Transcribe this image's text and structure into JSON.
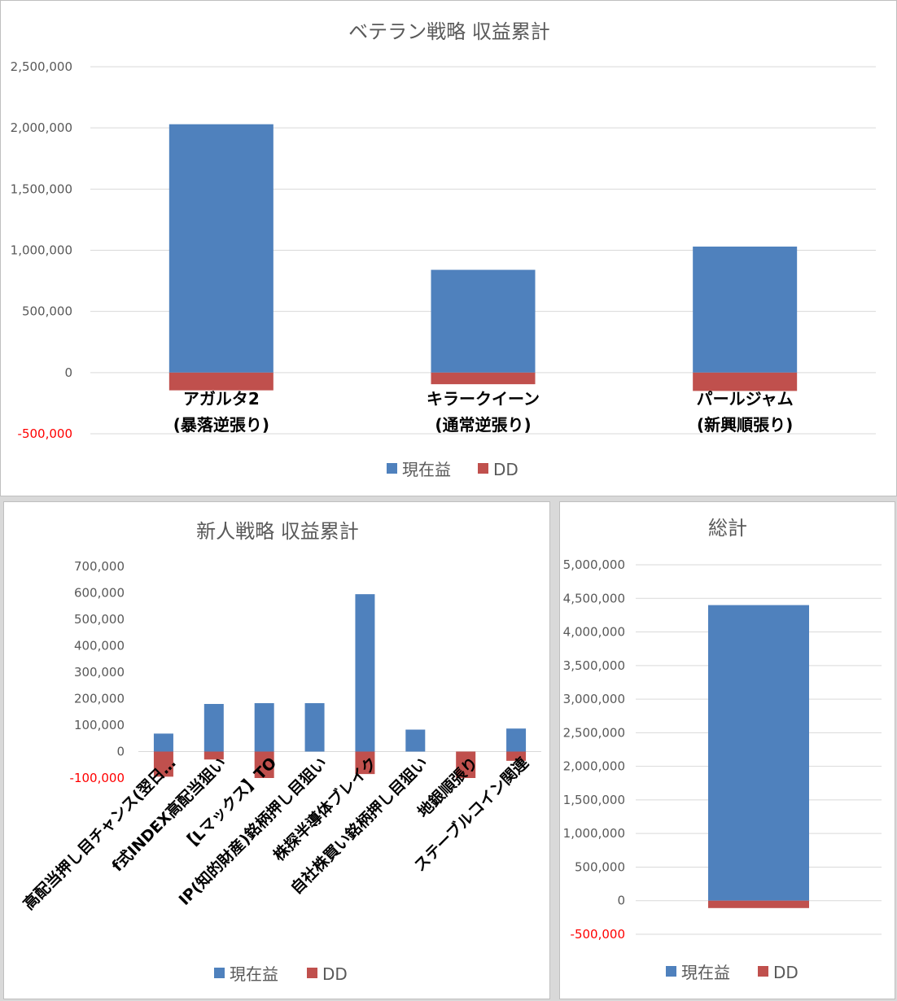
{
  "colors": {
    "profit": "#4f81bd",
    "dd": "#c0504d",
    "negative_tick": "#ff0000"
  },
  "chart_data": [
    {
      "type": "bar",
      "title": "ベテラン戦略 収益累計",
      "categories": [
        [
          "アガルタ2",
          "(暴落逆張り)"
        ],
        [
          "キラークイーン",
          "(通常逆張り)"
        ],
        [
          "パールジャム",
          "(新興順張り)"
        ]
      ],
      "series": [
        {
          "name": "現在益",
          "values": [
            2030000,
            840000,
            1030000
          ]
        },
        {
          "name": "DD",
          "values": [
            -145000,
            -95000,
            -150000
          ]
        }
      ],
      "ylim": [
        -500000,
        2500000
      ],
      "yticks": [
        -500000,
        0,
        500000,
        1000000,
        1500000,
        2000000,
        2500000
      ],
      "ytick_labels": [
        "-500,000",
        "0",
        "500,000",
        "1,000,000",
        "1,500,000",
        "2,000,000",
        "2,500,000"
      ],
      "grid": true,
      "legend": "bottom"
    },
    {
      "type": "bar",
      "title": "新人戦略 収益累計",
      "categories": [
        "高配当押し目チャンス(翌日…",
        "f式INDEX高配当狙い",
        "【Lマックス】TO",
        "IP(知的財産)銘柄押し目狙い",
        "株探半導体ブレイク",
        "自社株買い銘柄押し目狙い",
        "地銀順張り",
        "ステーブルコイン関連"
      ],
      "series": [
        {
          "name": "現在益",
          "values": [
            68000,
            180000,
            183000,
            183000,
            595000,
            83000,
            0,
            87000
          ]
        },
        {
          "name": "DD",
          "values": [
            -95000,
            -30000,
            -100000,
            0,
            -85000,
            0,
            -100000,
            -35000
          ]
        }
      ],
      "ylim": [
        -100000,
        700000
      ],
      "yticks": [
        -100000,
        0,
        100000,
        200000,
        300000,
        400000,
        500000,
        600000,
        700000
      ],
      "ytick_labels": [
        "-100,000",
        "0",
        "100,000",
        "200,000",
        "300,000",
        "400,000",
        "500,000",
        "600,000",
        "700,000"
      ],
      "grid": false,
      "legend": "bottom"
    },
    {
      "type": "bar",
      "title": "総計",
      "categories": [
        ""
      ],
      "series": [
        {
          "name": "現在益",
          "values": [
            4400000
          ]
        },
        {
          "name": "DD",
          "values": [
            -110000
          ]
        }
      ],
      "ylim": [
        -500000,
        5000000
      ],
      "yticks": [
        -500000,
        0,
        500000,
        1000000,
        1500000,
        2000000,
        2500000,
        3000000,
        3500000,
        4000000,
        4500000,
        5000000
      ],
      "ytick_labels": [
        "-500,000",
        "0",
        "500,000",
        "1,000,000",
        "1,500,000",
        "2,000,000",
        "2,500,000",
        "3,000,000",
        "3,500,000",
        "4,000,000",
        "4,500,000",
        "5,000,000"
      ],
      "grid": true,
      "legend": "bottom"
    }
  ]
}
